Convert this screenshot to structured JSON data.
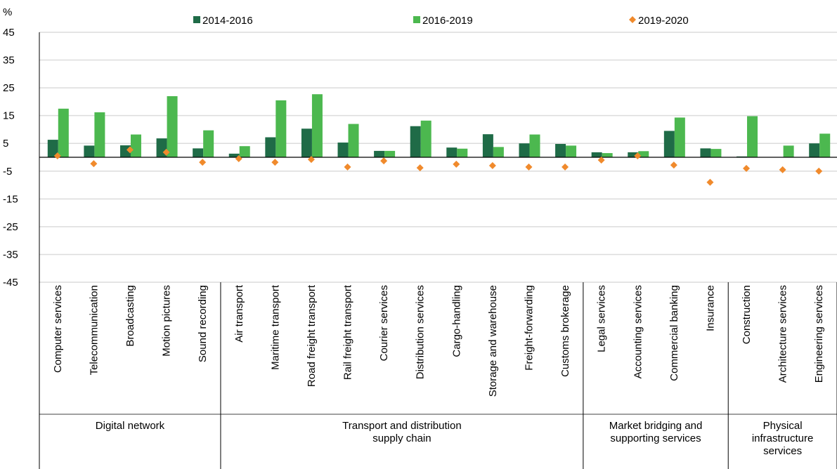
{
  "chart_data": {
    "type": "bar",
    "y_label": "%",
    "groups": [
      {
        "name": "Digital network",
        "categories": [
          "Computer services",
          "Telecommunication",
          "Broadcasting",
          "Motion pictures",
          "Sound recording"
        ]
      },
      {
        "name": "Transport and distribution supply chain",
        "categories": [
          "Air transport",
          "Maritime transport",
          "Road freight transport",
          "Rail freight transport",
          "Courier services",
          "Distribution services",
          "Cargo-handling",
          "Storage and warehouse",
          "Freight-forwarding",
          "Customs brokerage"
        ]
      },
      {
        "name": "Market bridging and supporting services",
        "categories": [
          "Legal services",
          "Accounting services",
          "Commercial banking",
          "Insurance"
        ]
      },
      {
        "name": "Physical infrastructure services",
        "categories": [
          "Construction",
          "Architecture services",
          "Engineering services"
        ]
      }
    ],
    "series": [
      {
        "name": "2014-2016",
        "type": "bar",
        "color": "#1f6b47",
        "values": [
          6.3,
          4.2,
          4.3,
          6.8,
          3.2,
          1.3,
          7.2,
          10.3,
          5.3,
          2.3,
          11.2,
          3.5,
          8.3,
          5,
          4.8,
          1.8,
          1.8,
          9.5,
          3.2,
          0.3,
          0,
          5
        ]
      },
      {
        "name": "2016-2019",
        "type": "bar",
        "color": "#4cb84f",
        "values": [
          17.5,
          16.2,
          8.2,
          22,
          9.7,
          4,
          20.5,
          22.7,
          12,
          2.3,
          13.2,
          3.1,
          3.7,
          8.2,
          4.2,
          1.5,
          2.2,
          14.3,
          3,
          14.8,
          4.2,
          8.5
        ]
      },
      {
        "name": "2019-2020",
        "type": "scatter",
        "color": "#f08a2c",
        "values": [
          0.5,
          -2.3,
          2.7,
          1.8,
          -1.8,
          -0.5,
          -1.8,
          -0.8,
          -3.5,
          -1.3,
          -3.8,
          -2.5,
          -3,
          -3.5,
          -3.5,
          -1,
          0.5,
          -2.8,
          -9,
          -4,
          -4.5,
          -5
        ]
      }
    ],
    "ylim": [
      -45,
      45
    ],
    "yticks": [
      -45,
      -35,
      -25,
      -15,
      -5,
      5,
      15,
      25,
      35,
      45
    ],
    "grid": true
  }
}
